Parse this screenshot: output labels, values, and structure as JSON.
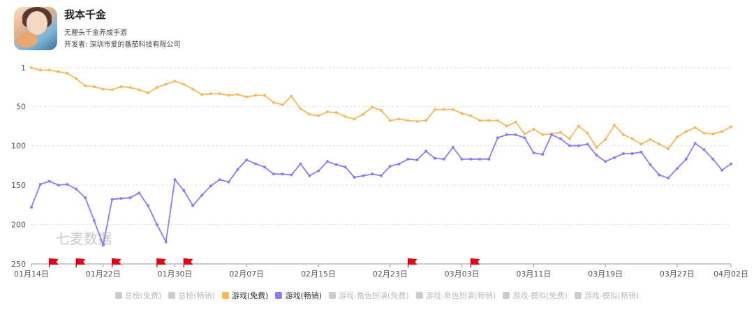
{
  "app": {
    "name": "我本千金",
    "subtitle": "无厘头千金养成手游",
    "developer": "开发者: 深圳市爱的番茄科技有限公司"
  },
  "watermark": "七麦数据",
  "colors": {
    "free": "#f8b75a",
    "grossing": "#8b7cf6",
    "inactive": "#cccccc",
    "grid": "#dddddd",
    "flag": "#e60012"
  },
  "chart_data": {
    "type": "line",
    "y_axis": {
      "reversed": true,
      "ylim": [
        1,
        250
      ],
      "ticks": [
        1,
        50,
        100,
        150,
        200,
        250
      ]
    },
    "x_tick_labels": [
      "01月14日",
      "01月22日",
      "01月30日",
      "02月07日",
      "02月15日",
      "02月23日",
      "03月03日",
      "03月11日",
      "03月19日",
      "03月27日",
      "04月02日"
    ],
    "x_tick_index": [
      0,
      8,
      16,
      24,
      32,
      40,
      48,
      56,
      64,
      72,
      78
    ],
    "flag_index": [
      2,
      5,
      9,
      14,
      17,
      42,
      49
    ],
    "series": [
      {
        "name": "游戏(免费)",
        "color": "#f8b75a",
        "values": [
          1,
          4,
          4,
          6,
          8,
          15,
          24,
          25,
          28,
          29,
          25,
          26,
          29,
          33,
          26,
          22,
          18,
          22,
          28,
          35,
          34,
          34,
          36,
          35,
          38,
          36,
          36,
          45,
          48,
          37,
          53,
          60,
          62,
          57,
          58,
          63,
          66,
          60,
          51,
          55,
          68,
          66,
          68,
          69,
          68,
          54,
          54,
          54,
          59,
          62,
          68,
          68,
          68,
          75,
          70,
          85,
          79,
          86,
          85,
          83,
          91,
          75,
          84,
          102,
          92,
          74,
          86,
          91,
          98,
          92,
          98,
          104,
          89,
          82,
          77,
          84,
          85,
          82,
          76
        ]
      },
      {
        "name": "游戏(畅销)",
        "color": "#8b7cf6",
        "values": [
          178,
          149,
          145,
          150,
          149,
          155,
          166,
          195,
          226,
          168,
          167,
          166,
          160,
          176,
          200,
          222,
          143,
          157,
          176,
          163,
          151,
          143,
          146,
          130,
          118,
          123,
          127,
          136,
          136,
          137,
          123,
          138,
          132,
          120,
          124,
          127,
          140,
          138,
          136,
          138,
          126,
          123,
          117,
          118,
          107,
          116,
          117,
          102,
          117,
          117,
          117,
          117,
          90,
          86,
          86,
          90,
          109,
          111,
          86,
          91,
          100,
          100,
          98,
          112,
          120,
          115,
          110,
          110,
          108,
          124,
          137,
          141,
          129,
          117,
          97,
          105,
          117,
          131,
          123
        ]
      }
    ],
    "legend": [
      {
        "label": "总榜(免费)",
        "active": false
      },
      {
        "label": "总榜(畅销)",
        "active": false
      },
      {
        "label": "游戏(免费)",
        "active": true,
        "color": "#f8b75a"
      },
      {
        "label": "游戏(畅销)",
        "active": true,
        "color": "#8b7cf6"
      },
      {
        "label": "游戏-角色扮演(免费)",
        "active": false
      },
      {
        "label": "游戏-角色扮演(畅销)",
        "active": false
      },
      {
        "label": "游戏-模拟(免费)",
        "active": false
      },
      {
        "label": "游戏-模拟(畅销)",
        "active": false
      }
    ],
    "grid": true
  }
}
